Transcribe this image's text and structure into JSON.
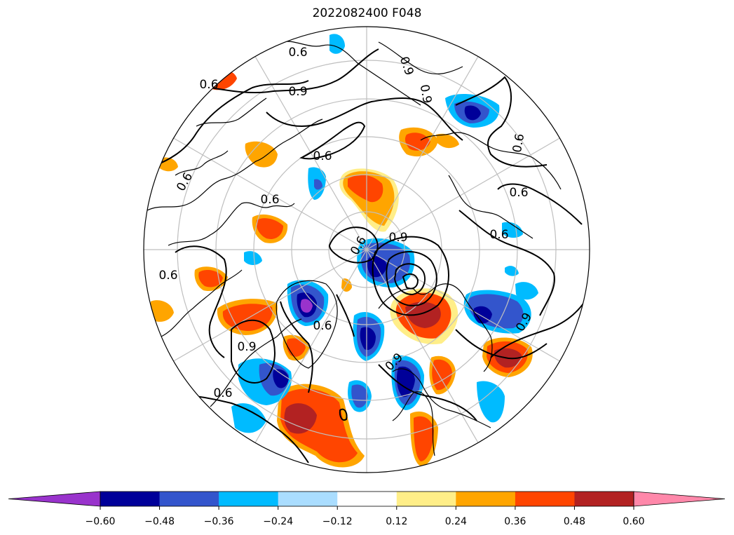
{
  "title": "2022082400 F048",
  "colors": {
    "grid": "#bfbfbf",
    "contour": "#000000",
    "coast": "#000000"
  },
  "contour_labels": [
    "0.6",
    "0.9",
    "0.9",
    "0.9",
    "0.6",
    "0.9",
    "0.6",
    "0.6",
    "0.6",
    "0.6",
    "0.9",
    "0.6",
    "0.6",
    "0.6",
    "0.9",
    "0.6",
    "0.6",
    "0.9",
    "0.6"
  ],
  "colorbar": {
    "levels": [
      -0.72,
      -0.6,
      -0.48,
      -0.36,
      -0.24,
      -0.12,
      0.12,
      0.24,
      0.36,
      0.48,
      0.6,
      0.72
    ],
    "colors": [
      "#9933cc",
      "#000099",
      "#3355cc",
      "#00bbff",
      "#aaddff",
      "#ffffff",
      "#ffee88",
      "#ffa500",
      "#ff4500",
      "#b22222",
      "#ff88aa"
    ],
    "under_color": "#9933cc",
    "over_color": "#ff88aa",
    "tick_labels": [
      "−0.60",
      "−0.48",
      "−0.36",
      "−0.24",
      "−0.12",
      "0.12",
      "0.24",
      "0.36",
      "0.48",
      "0.60"
    ]
  }
}
